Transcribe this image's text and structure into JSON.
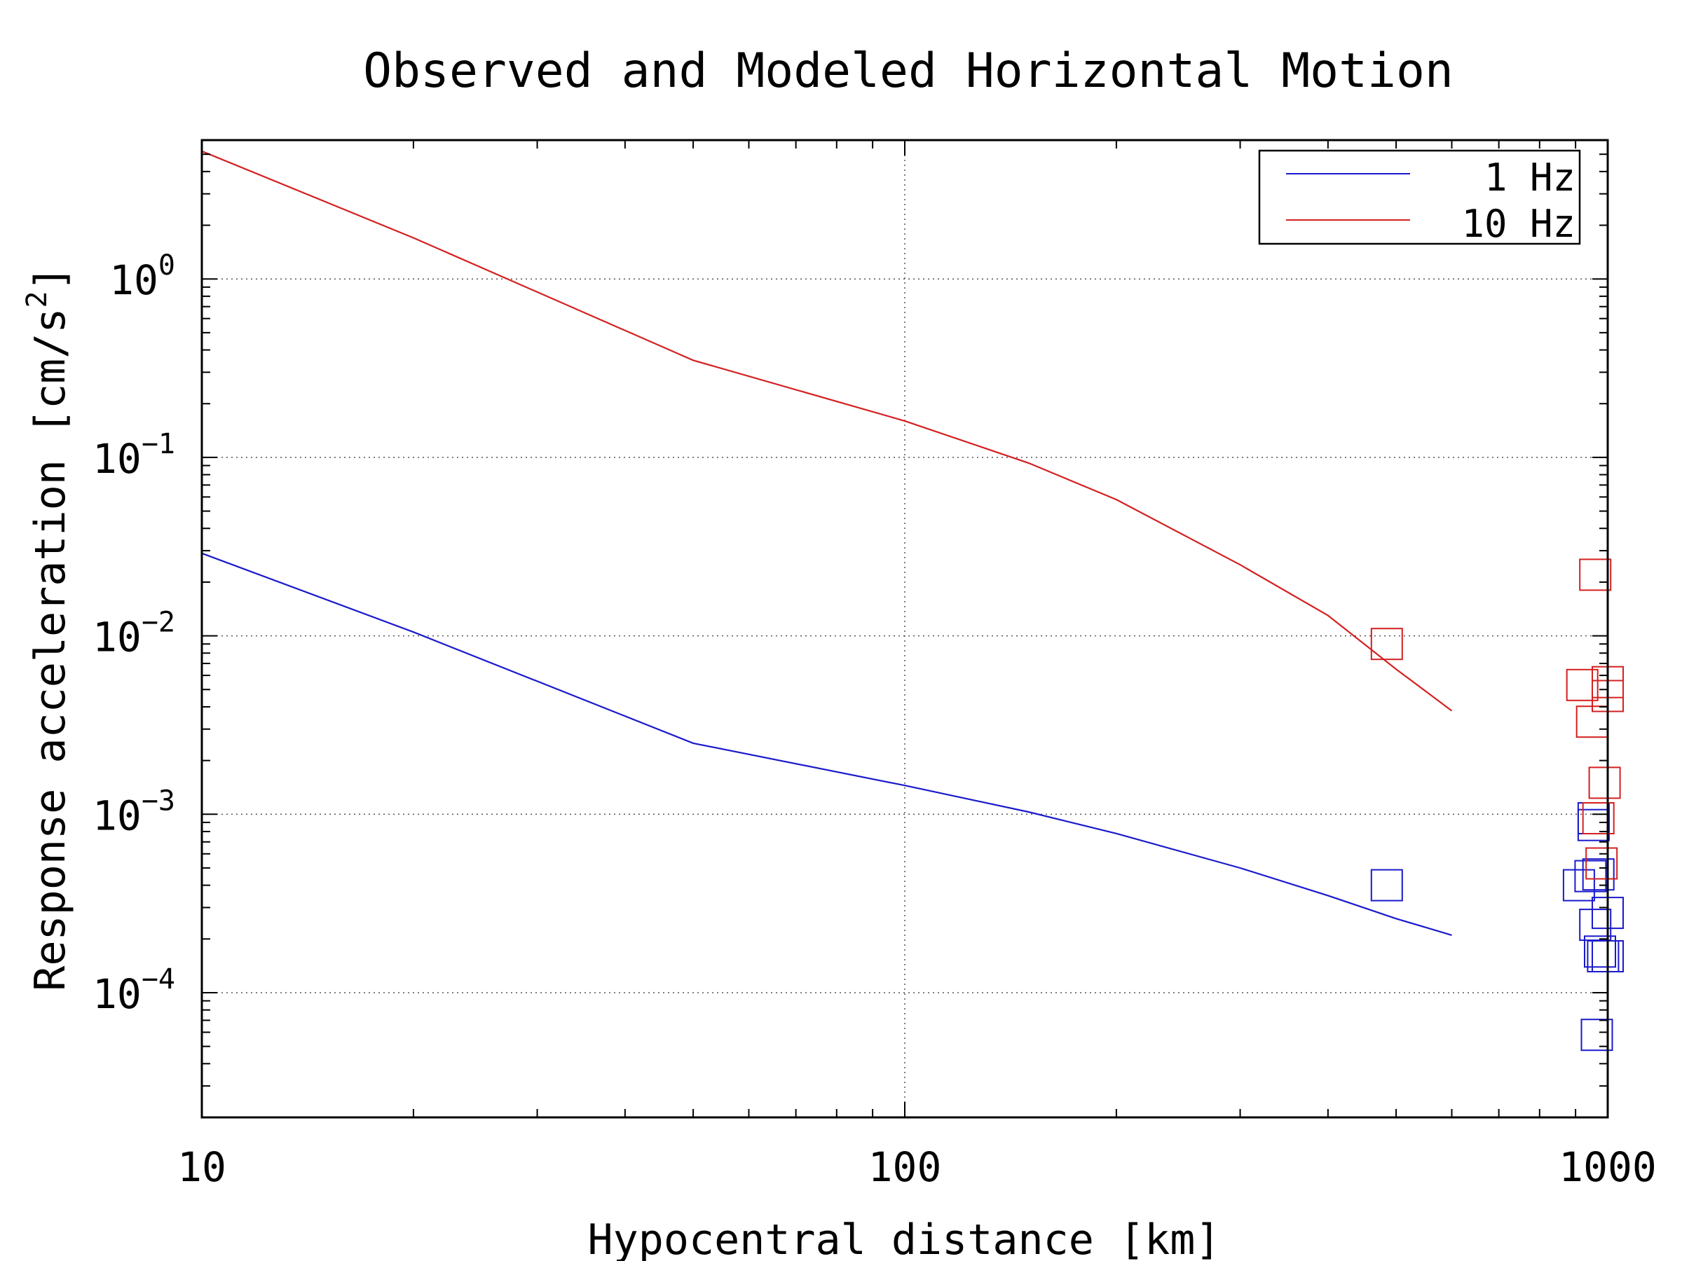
{
  "chart_data": {
    "type": "line",
    "title": "Observed and Modeled Horizontal Motion",
    "xlabel": "Hypocentral distance [km]",
    "ylabel": "Response acceleration [cm/s",
    "ylabel_exponent": "2",
    "ylabel_suffix": "]",
    "x_scale": "log",
    "y_scale": "log",
    "xlim": [
      10,
      1000
    ],
    "ylim": [
      2e-05,
      6
    ],
    "x_ticks": [
      {
        "value": 10,
        "label": "10"
      },
      {
        "value": 100,
        "label": "100"
      },
      {
        "value": 1000,
        "label": "1000"
      }
    ],
    "y_ticks": [
      {
        "value": 1,
        "base": "10",
        "exp": "0"
      },
      {
        "value": 0.1,
        "base": "10",
        "exp": "−1"
      },
      {
        "value": 0.01,
        "base": "10",
        "exp": "−2"
      },
      {
        "value": 0.001,
        "base": "10",
        "exp": "−3"
      },
      {
        "value": 0.0001,
        "base": "10",
        "exp": "−4"
      }
    ],
    "grid": "dotted",
    "legend_position": "top-right",
    "series": [
      {
        "name": "1 Hz",
        "color": "#1a1acc",
        "model_x": [
          10,
          20,
          50,
          100,
          150,
          200,
          300,
          400,
          500,
          600
        ],
        "model_y": [
          0.029,
          0.0105,
          0.0025,
          0.00145,
          0.00103,
          0.00078,
          0.0005,
          0.00035,
          0.00026,
          0.00021
        ],
        "observed_x": [
          485,
          910,
          945,
          955,
          955,
          960,
          965,
          970,
          975,
          985,
          1000,
          1000,
          1000
        ],
        "observed_y": [
          0.0004,
          0.0004,
          0.00045,
          0.00087,
          0.00095,
          0.00024,
          5.8e-05,
          0.00046,
          0.00017,
          0.00016,
          0.00028,
          0.00016,
          0.00016
        ]
      },
      {
        "name": "10 Hz",
        "color": "#d42020",
        "model_x": [
          10,
          20,
          50,
          100,
          150,
          200,
          300,
          400,
          500,
          600
        ],
        "model_y": [
          5.2,
          1.7,
          0.35,
          0.16,
          0.093,
          0.058,
          0.025,
          0.013,
          0.0065,
          0.0038
        ],
        "observed_x": [
          485,
          920,
          950,
          960,
          970,
          980,
          990,
          1000,
          1000
        ],
        "observed_y": [
          0.009,
          0.0053,
          0.0033,
          0.022,
          0.00095,
          0.00053,
          0.0015,
          0.0055,
          0.0046
        ]
      }
    ]
  }
}
